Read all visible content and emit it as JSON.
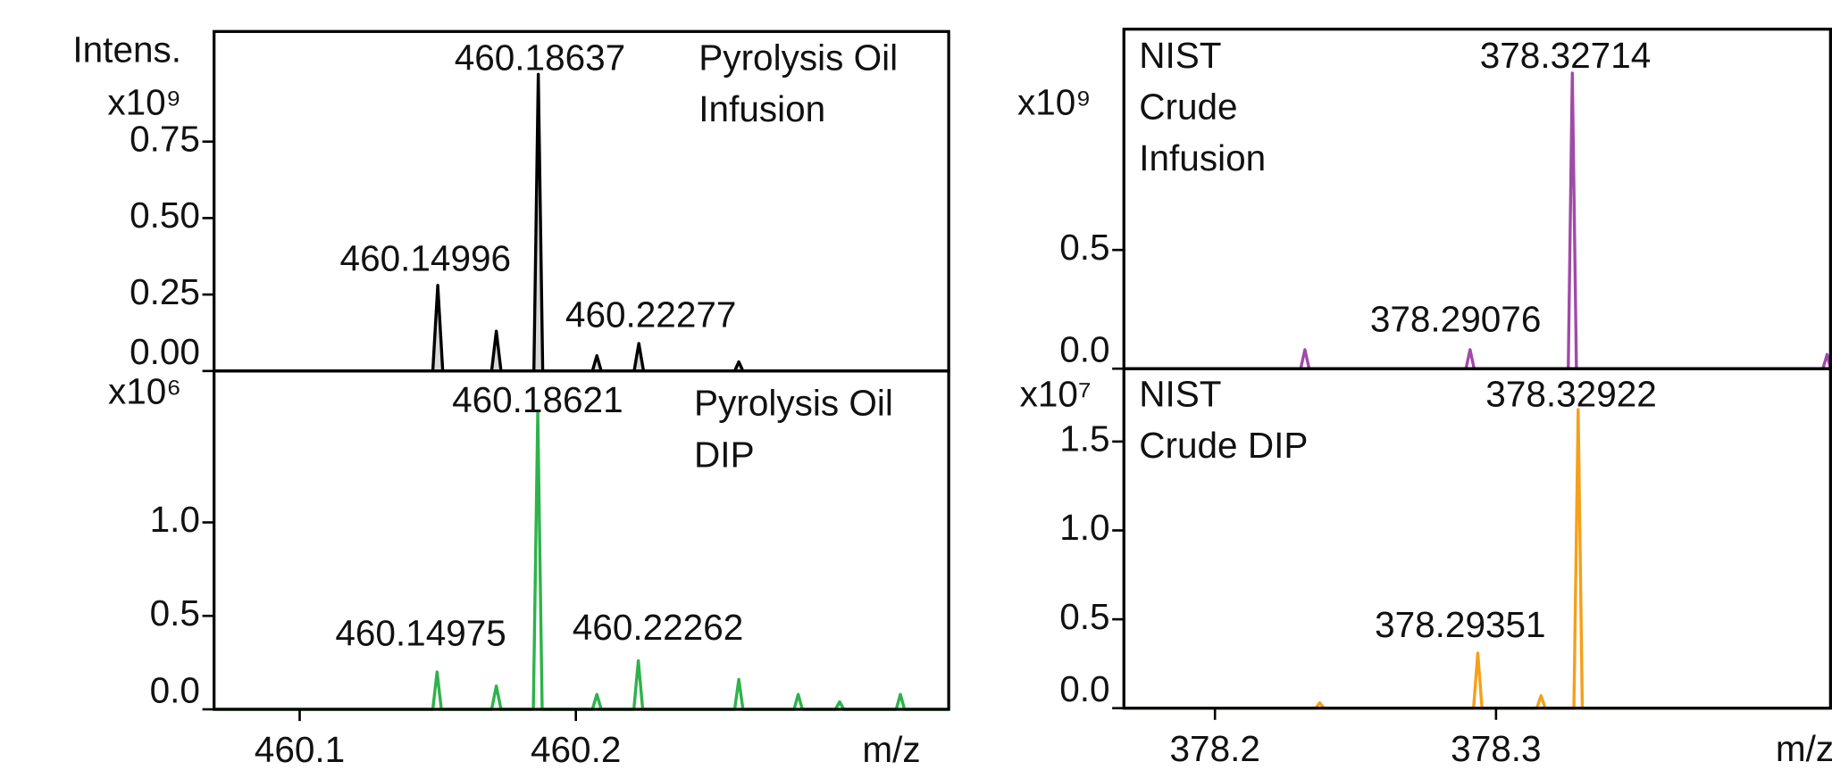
{
  "chart_data": [
    {
      "type": "line",
      "ylabel": "Intens.",
      "y_multiplier": "x10⁹",
      "label": [
        "Pyrolysis Oil",
        "Infusion"
      ],
      "annotations": [
        "460.18637",
        "460.14996",
        "460.22277"
      ],
      "xlim": [
        460.069,
        460.335
      ],
      "ylim": [
        0,
        1.11
      ],
      "yticks": [
        {
          "value": 0,
          "label": "0.00"
        },
        0.25,
        {
          "value": 0.5,
          "label": "0.50"
        },
        0.75
      ],
      "fill": "#d9d9d9",
      "series": [
        {
          "color": "#000000",
          "x": [
            460.069,
            460.1482,
            460.15,
            460.1518,
            460.1695,
            460.1712,
            460.1729,
            460.1848,
            460.1864,
            460.188,
            460.206,
            460.2076,
            460.2092,
            460.2211,
            460.2228,
            460.2245,
            460.2575,
            460.259,
            460.2605,
            460.335
          ],
          "values": [
            0,
            0,
            0.28,
            0,
            0,
            0.13,
            0,
            0,
            0.97,
            0,
            0,
            0.05,
            0,
            0,
            0.09,
            0,
            0,
            0.03,
            0,
            0
          ]
        }
      ]
    },
    {
      "type": "line",
      "y_multiplier": "x10⁶",
      "label": [
        "Pyrolysis Oil",
        "DIP"
      ],
      "xlabel": "m/z",
      "annotations": [
        "460.18621",
        "460.14975",
        "460.22262"
      ],
      "xlim": [
        460.069,
        460.335
      ],
      "ylim": [
        0,
        1.81
      ],
      "xticks": [
        460.1,
        460.2
      ],
      "yticks": [
        {
          "value": 0,
          "label": "0.0"
        },
        0.5,
        {
          "value": 1,
          "label": "1.0"
        }
      ],
      "series": [
        {
          "color": "#2db34a",
          "x": [
            460.069,
            460.1482,
            460.14975,
            460.1513,
            460.1695,
            460.1712,
            460.1729,
            460.1846,
            460.18621,
            460.1878,
            460.206,
            460.2076,
            460.2092,
            460.221,
            460.22262,
            460.2242,
            460.2575,
            460.259,
            460.2605,
            460.279,
            460.2805,
            460.282,
            460.294,
            460.2955,
            460.297,
            460.316,
            460.3175,
            460.319,
            460.335
          ],
          "values": [
            0,
            0,
            0.2,
            0,
            0,
            0.125,
            0,
            0,
            1.59,
            0,
            0,
            0.08,
            0,
            0,
            0.26,
            0,
            0,
            0.16,
            0,
            0,
            0.08,
            0,
            0,
            0.04,
            0,
            0,
            0.08,
            0,
            0
          ]
        }
      ]
    },
    {
      "type": "line",
      "y_multiplier": "x10⁹",
      "label": [
        "NIST",
        "Crude",
        "Infusion"
      ],
      "annotations": [
        "378.32714",
        "378.29076"
      ],
      "xlim": [
        378.1676,
        378.419
      ],
      "ylim": [
        0,
        1.43
      ],
      "yticks": [
        {
          "value": 0,
          "label": "0.0"
        },
        0.5
      ],
      "series": [
        {
          "color": "#a04aa8",
          "x": [
            378.1676,
            378.2305,
            378.232,
            378.2335,
            378.2893,
            378.29076,
            378.2922,
            378.3257,
            378.32714,
            378.3286,
            378.4163,
            378.4178,
            378.419
          ],
          "values": [
            0,
            0,
            0.08,
            0,
            0,
            0.08,
            0,
            0,
            1.245,
            0,
            0,
            0.06,
            0
          ]
        }
      ]
    },
    {
      "type": "line",
      "y_multiplier": "x10⁷",
      "label": [
        "NIST",
        "Crude DIP"
      ],
      "xlabel": "m/z",
      "annotations": [
        "378.32922",
        "378.29351"
      ],
      "xlim": [
        378.1676,
        378.419
      ],
      "ylim": [
        0,
        1.91
      ],
      "xticks": [
        378.2,
        378.3
      ],
      "yticks": [
        {
          "value": 0,
          "label": "0.0"
        },
        0.5,
        {
          "value": 1,
          "label": "1.0"
        },
        1.5
      ],
      "series": [
        {
          "color": "#f5a01a",
          "x": [
            378.1676,
            378.2358,
            378.2373,
            378.2388,
            378.292,
            378.29351,
            378.295,
            378.3145,
            378.316,
            378.3175,
            378.3277,
            378.32922,
            378.3307,
            378.419
          ],
          "values": [
            0,
            0,
            0.03,
            0,
            0,
            0.31,
            0,
            0,
            0.07,
            0,
            0,
            1.68,
            0,
            0
          ]
        }
      ]
    }
  ]
}
